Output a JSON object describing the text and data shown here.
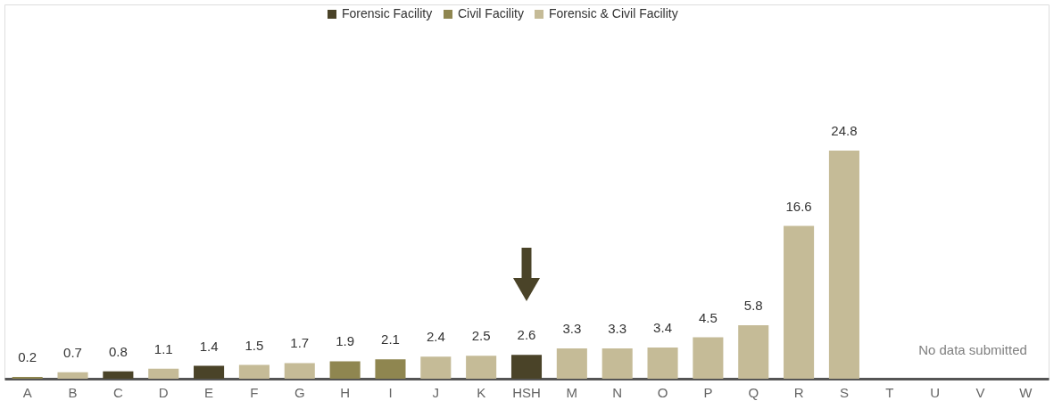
{
  "chart_data": {
    "type": "bar",
    "categories": [
      "A",
      "B",
      "C",
      "D",
      "E",
      "F",
      "G",
      "H",
      "I",
      "J",
      "K",
      "HSH",
      "M",
      "N",
      "O",
      "P",
      "Q",
      "R",
      "S",
      "T",
      "U",
      "V",
      "W"
    ],
    "series": [
      {
        "name": "Forensic Facility",
        "color": "#4a4328",
        "values": [
          null,
          null,
          0.8,
          null,
          1.4,
          null,
          null,
          null,
          null,
          null,
          null,
          2.6,
          null,
          null,
          null,
          null,
          null,
          null,
          null,
          null,
          null,
          null,
          null
        ]
      },
      {
        "name": "Civil Facility",
        "color": "#8f8650",
        "values": [
          0.2,
          null,
          null,
          null,
          null,
          null,
          null,
          1.9,
          2.1,
          null,
          null,
          null,
          null,
          null,
          null,
          null,
          null,
          null,
          null,
          null,
          null,
          null,
          null
        ]
      },
      {
        "name": "Forensic & Civil Facility",
        "color": "#c5bb97",
        "values": [
          null,
          0.7,
          null,
          1.1,
          null,
          1.5,
          1.7,
          null,
          null,
          2.4,
          2.5,
          null,
          3.3,
          3.3,
          3.4,
          4.5,
          5.8,
          16.6,
          24.8,
          null,
          null,
          null,
          null
        ]
      }
    ],
    "data_labels": true,
    "legend": "top",
    "annotations": [
      "No data submitted"
    ]
  }
}
